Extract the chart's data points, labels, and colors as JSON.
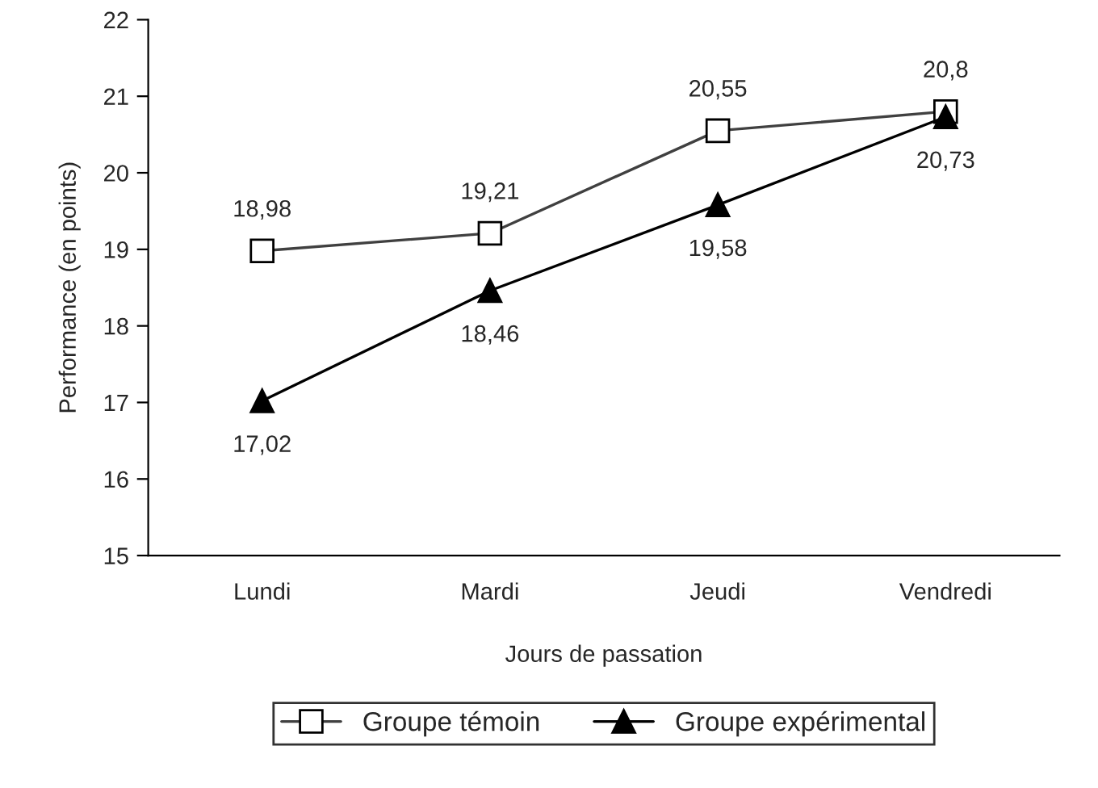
{
  "chart_data": {
    "type": "line",
    "xlabel": "Jours de passation",
    "ylabel": "Performance (en points)",
    "categories": [
      "Lundi",
      "Mardi",
      "Jeudi",
      "Vendredi"
    ],
    "ylim": [
      15,
      22
    ],
    "yticks": [
      15,
      16,
      17,
      18,
      19,
      20,
      21,
      22
    ],
    "grid": false,
    "legend": "bottom",
    "series": [
      {
        "name": "Groupe témoin",
        "color": "#404040",
        "marker": "square",
        "values": [
          18.98,
          19.21,
          20.55,
          20.8
        ],
        "value_labels": [
          "18,98",
          "19,21",
          "20,55",
          "20,8"
        ]
      },
      {
        "name": "Groupe expérimental",
        "color": "#000000",
        "marker": "triangle",
        "values": [
          17.02,
          18.46,
          19.58,
          20.73
        ],
        "value_labels": [
          "17,02",
          "18,46",
          "19,58",
          "20,73"
        ]
      }
    ]
  }
}
